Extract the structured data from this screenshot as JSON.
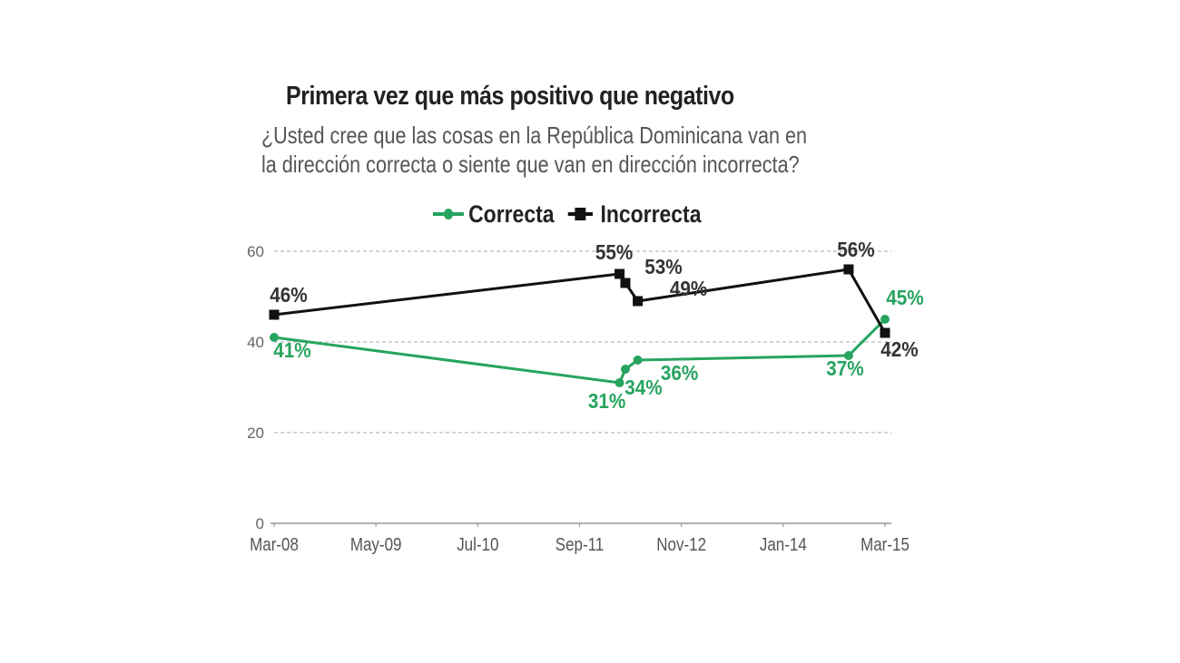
{
  "chart_data": {
    "type": "line",
    "title": "Primera vez que más positivo que negativo",
    "subtitle_lines": [
      "¿Usted cree que las cosas en la República Dominicana van en",
      "la dirección correcta o siente que van en dirección incorrecta?"
    ],
    "xlabel": "",
    "ylabel": "",
    "ylim": [
      0,
      60
    ],
    "yticks": [
      0,
      20,
      40,
      60
    ],
    "xlim_months": [
      0,
      84
    ],
    "xticks": [
      {
        "label": "Mar-08",
        "month": 0
      },
      {
        "label": "May-09",
        "month": 14
      },
      {
        "label": "Jul-10",
        "month": 28
      },
      {
        "label": "Sep-11",
        "month": 42
      },
      {
        "label": "Nov-12",
        "month": 56
      },
      {
        "label": "Jan-14",
        "month": 70
      },
      {
        "label": "Mar-15",
        "month": 84
      }
    ],
    "grid": true,
    "legend_position": "top-center",
    "series": [
      {
        "name": "Correcta",
        "color": "#27a45f",
        "marker": "circle",
        "points": [
          {
            "month": 0,
            "value": 41,
            "label": "41%"
          },
          {
            "month": 47.5,
            "value": 31,
            "label": "31%"
          },
          {
            "month": 48.3,
            "value": 34,
            "label": "34%"
          },
          {
            "month": 50,
            "value": 36,
            "label": "36%"
          },
          {
            "month": 79,
            "value": 37,
            "label": "37%"
          },
          {
            "month": 84,
            "value": 45,
            "label": "45%"
          }
        ]
      },
      {
        "name": "Incorrecta",
        "color": "#111111",
        "marker": "square",
        "points": [
          {
            "month": 0,
            "value": 46,
            "label": "46%"
          },
          {
            "month": 47.5,
            "value": 55,
            "label": "55%"
          },
          {
            "month": 48.3,
            "value": 53,
            "label": "53%"
          },
          {
            "month": 50,
            "value": 49,
            "label": "49%"
          },
          {
            "month": 79,
            "value": 56,
            "label": "56%"
          },
          {
            "month": 84,
            "value": 42,
            "label": "42%"
          }
        ]
      }
    ]
  }
}
